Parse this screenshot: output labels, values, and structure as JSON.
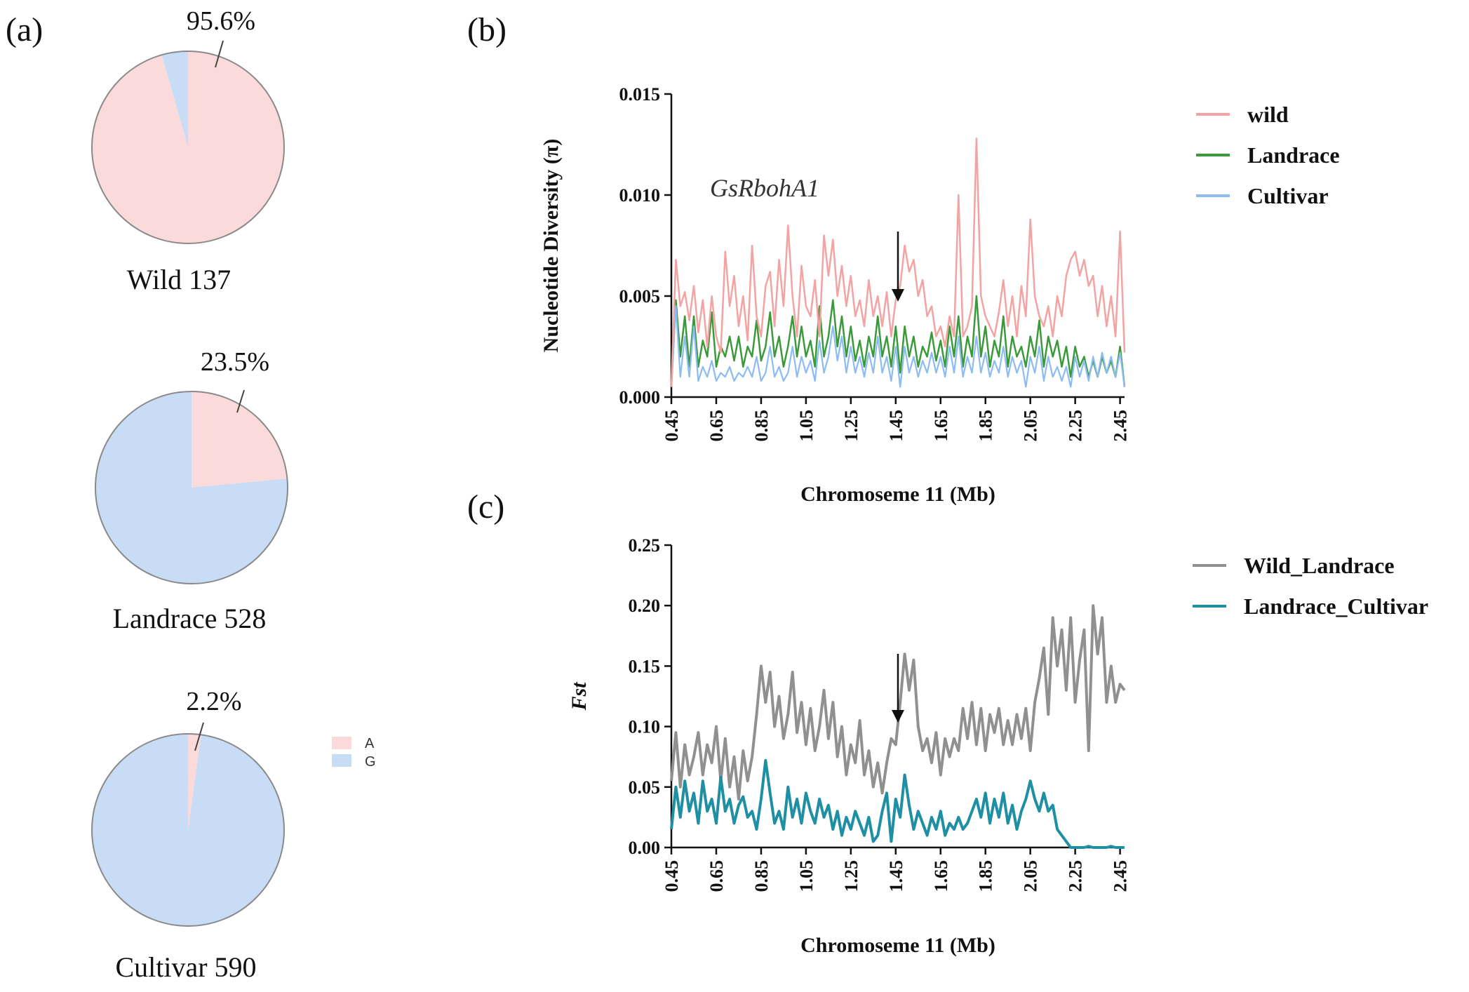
{
  "panels": {
    "a": "(a)",
    "b": "(b)",
    "c": "(c)"
  },
  "colors": {
    "A": "#fadada",
    "G": "#c8dcf5",
    "wild": "#f4a3a3",
    "landrace": "#3a9a3a",
    "cultivar": "#8cbcf2",
    "wild_landrace": "#909090",
    "landrace_cultivar": "#1f8fa3"
  },
  "chart_data": [
    {
      "type": "pie",
      "id": "pie-wild",
      "title": "Wild 137",
      "labels": [
        "A",
        "G"
      ],
      "values": [
        95.6,
        4.4
      ],
      "label_text": "95.6%",
      "legend": [
        "A",
        "G"
      ]
    },
    {
      "type": "pie",
      "id": "pie-landrace",
      "title": "Landrace 528",
      "labels": [
        "A",
        "G"
      ],
      "values": [
        23.5,
        76.5
      ],
      "label_text": "23.5%"
    },
    {
      "type": "pie",
      "id": "pie-cultivar",
      "title": "Cultivar 590",
      "labels": [
        "A",
        "G"
      ],
      "values": [
        2.2,
        97.8
      ],
      "label_text": "2.2%"
    },
    {
      "type": "line",
      "id": "diversity",
      "xlabel": "Chromoseme 11 (Mb)",
      "ylabel": "Nucleotide Diversity (π)",
      "xlim": [
        0.45,
        2.47
      ],
      "ylim": [
        0,
        0.015
      ],
      "xticks": [
        "0.45",
        "0.65",
        "0.85",
        "1.05",
        "1.25",
        "1.45",
        "1.65",
        "1.85",
        "2.05",
        "2.25",
        "2.45"
      ],
      "yticks": [
        "0.000",
        "0.005",
        "0.010",
        "0.015"
      ],
      "annotation": {
        "text": "GsRbohA1",
        "x": 1.45,
        "y": 0.0048
      },
      "x": [
        0.45,
        0.47,
        0.49,
        0.51,
        0.53,
        0.55,
        0.57,
        0.59,
        0.61,
        0.63,
        0.65,
        0.67,
        0.69,
        0.71,
        0.73,
        0.75,
        0.77,
        0.79,
        0.81,
        0.83,
        0.85,
        0.87,
        0.89,
        0.91,
        0.93,
        0.95,
        0.97,
        0.99,
        1.01,
        1.03,
        1.05,
        1.07,
        1.09,
        1.11,
        1.13,
        1.15,
        1.17,
        1.19,
        1.21,
        1.23,
        1.25,
        1.27,
        1.29,
        1.31,
        1.33,
        1.35,
        1.37,
        1.39,
        1.41,
        1.43,
        1.45,
        1.47,
        1.49,
        1.51,
        1.53,
        1.55,
        1.57,
        1.59,
        1.61,
        1.63,
        1.65,
        1.67,
        1.69,
        1.71,
        1.73,
        1.75,
        1.77,
        1.79,
        1.81,
        1.83,
        1.85,
        1.87,
        1.89,
        1.91,
        1.93,
        1.95,
        1.97,
        1.99,
        2.01,
        2.03,
        2.05,
        2.07,
        2.09,
        2.11,
        2.13,
        2.15,
        2.17,
        2.19,
        2.21,
        2.23,
        2.25,
        2.27,
        2.29,
        2.31,
        2.33,
        2.35,
        2.37,
        2.39,
        2.41,
        2.43,
        2.45,
        2.47
      ],
      "series": [
        {
          "name": "wild",
          "values": [
            0.0005,
            0.0068,
            0.0045,
            0.0052,
            0.0038,
            0.0055,
            0.0032,
            0.0048,
            0.0025,
            0.005,
            0.003,
            0.0022,
            0.0072,
            0.0045,
            0.006,
            0.0035,
            0.005,
            0.0028,
            0.0075,
            0.004,
            0.003,
            0.0055,
            0.0062,
            0.0035,
            0.0068,
            0.0045,
            0.0085,
            0.005,
            0.003,
            0.0065,
            0.0045,
            0.004,
            0.0058,
            0.003,
            0.008,
            0.006,
            0.0078,
            0.005,
            0.0065,
            0.0045,
            0.006,
            0.004,
            0.0048,
            0.0035,
            0.0058,
            0.004,
            0.005,
            0.0035,
            0.0052,
            0.003,
            0.0048,
            0.0055,
            0.0075,
            0.0062,
            0.0068,
            0.005,
            0.0058,
            0.004,
            0.0045,
            0.003,
            0.0035,
            0.0025,
            0.004,
            0.003,
            0.01,
            0.003,
            0.0035,
            0.0045,
            0.0128,
            0.005,
            0.004,
            0.0035,
            0.003,
            0.0042,
            0.0058,
            0.0035,
            0.005,
            0.003,
            0.0055,
            0.004,
            0.0088,
            0.005,
            0.004,
            0.0035,
            0.0045,
            0.003,
            0.005,
            0.004,
            0.006,
            0.0068,
            0.0072,
            0.006,
            0.0068,
            0.0055,
            0.006,
            0.004,
            0.0055,
            0.0035,
            0.005,
            0.003,
            0.0082,
            0.0022
          ]
        },
        {
          "name": "Landrace",
          "values": [
            0.0005,
            0.0048,
            0.002,
            0.004,
            0.0015,
            0.004,
            0.0015,
            0.0028,
            0.002,
            0.0042,
            0.0015,
            0.0025,
            0.002,
            0.003,
            0.0018,
            0.003,
            0.0015,
            0.0025,
            0.002,
            0.0038,
            0.0018,
            0.0025,
            0.0042,
            0.002,
            0.003,
            0.0015,
            0.0025,
            0.004,
            0.002,
            0.0035,
            0.002,
            0.0028,
            0.0015,
            0.0045,
            0.002,
            0.003,
            0.0048,
            0.0025,
            0.004,
            0.002,
            0.0035,
            0.0018,
            0.0028,
            0.0015,
            0.003,
            0.002,
            0.004,
            0.002,
            0.003,
            0.0015,
            0.0035,
            0.0012,
            0.0035,
            0.002,
            0.003,
            0.0015,
            0.0025,
            0.002,
            0.0032,
            0.0018,
            0.0028,
            0.0015,
            0.0035,
            0.002,
            0.004,
            0.0015,
            0.003,
            0.002,
            0.005,
            0.002,
            0.0035,
            0.0015,
            0.0028,
            0.002,
            0.004,
            0.0015,
            0.003,
            0.002,
            0.0025,
            0.0015,
            0.003,
            0.002,
            0.0038,
            0.0015,
            0.003,
            0.002,
            0.0028,
            0.0015,
            0.0025,
            0.001,
            0.0025,
            0.0015,
            0.002,
            0.001,
            0.0018,
            0.001,
            0.002,
            0.0012,
            0.0018,
            0.001,
            0.0025,
            0.0005
          ]
        },
        {
          "name": "Cultivar",
          "values": [
            0.0005,
            0.0045,
            0.001,
            0.003,
            0.001,
            0.0035,
            0.0008,
            0.0015,
            0.001,
            0.0018,
            0.0008,
            0.0012,
            0.001,
            0.0015,
            0.0008,
            0.0012,
            0.001,
            0.0015,
            0.001,
            0.002,
            0.0008,
            0.0012,
            0.0025,
            0.001,
            0.0015,
            0.0008,
            0.0012,
            0.0025,
            0.001,
            0.002,
            0.0012,
            0.0018,
            0.0008,
            0.0028,
            0.0012,
            0.002,
            0.0035,
            0.0018,
            0.003,
            0.0012,
            0.0025,
            0.0012,
            0.002,
            0.001,
            0.0022,
            0.0012,
            0.003,
            0.0012,
            0.002,
            0.0008,
            0.0025,
            0.0005,
            0.0025,
            0.0012,
            0.002,
            0.001,
            0.0018,
            0.0012,
            0.0022,
            0.0012,
            0.002,
            0.001,
            0.0025,
            0.0012,
            0.003,
            0.001,
            0.002,
            0.0012,
            0.003,
            0.0012,
            0.0022,
            0.001,
            0.0018,
            0.0012,
            0.0025,
            0.001,
            0.002,
            0.0012,
            0.0018,
            0.0005,
            0.002,
            0.0012,
            0.0025,
            0.0008,
            0.002,
            0.001,
            0.0015,
            0.0008,
            0.0015,
            0.0005,
            0.002,
            0.001,
            0.0018,
            0.0008,
            0.002,
            0.001,
            0.0022,
            0.0012,
            0.002,
            0.001,
            0.0022,
            0.0005
          ]
        }
      ]
    },
    {
      "type": "line",
      "id": "fst",
      "xlabel": "Chromoseme 11 (Mb)",
      "ylabel": "Fst",
      "xlim": [
        0.45,
        2.47
      ],
      "ylim": [
        0,
        0.25
      ],
      "xticks": [
        "0.45",
        "0.65",
        "0.85",
        "1.05",
        "1.25",
        "1.45",
        "1.65",
        "1.85",
        "2.05",
        "2.25",
        "2.45"
      ],
      "yticks": [
        "0.00",
        "0.05",
        "0.10",
        "0.15",
        "0.20",
        "0.25"
      ],
      "annotation": {
        "text": "",
        "x": 1.45,
        "y": 0.1
      },
      "x": [
        0.45,
        0.47,
        0.49,
        0.51,
        0.53,
        0.55,
        0.57,
        0.59,
        0.61,
        0.63,
        0.65,
        0.67,
        0.69,
        0.71,
        0.73,
        0.75,
        0.77,
        0.79,
        0.81,
        0.83,
        0.85,
        0.87,
        0.89,
        0.91,
        0.93,
        0.95,
        0.97,
        0.99,
        1.01,
        1.03,
        1.05,
        1.07,
        1.09,
        1.11,
        1.13,
        1.15,
        1.17,
        1.19,
        1.21,
        1.23,
        1.25,
        1.27,
        1.29,
        1.31,
        1.33,
        1.35,
        1.37,
        1.39,
        1.41,
        1.43,
        1.45,
        1.47,
        1.49,
        1.51,
        1.53,
        1.55,
        1.57,
        1.59,
        1.61,
        1.63,
        1.65,
        1.67,
        1.69,
        1.71,
        1.73,
        1.75,
        1.77,
        1.79,
        1.81,
        1.83,
        1.85,
        1.87,
        1.89,
        1.91,
        1.93,
        1.95,
        1.97,
        1.99,
        2.01,
        2.03,
        2.05,
        2.07,
        2.09,
        2.11,
        2.13,
        2.15,
        2.17,
        2.19,
        2.21,
        2.23,
        2.25,
        2.27,
        2.29,
        2.31,
        2.33,
        2.35,
        2.37,
        2.39,
        2.41,
        2.43,
        2.45,
        2.47
      ],
      "series": [
        {
          "name": "Wild_Landrace",
          "values": [
            0.055,
            0.095,
            0.05,
            0.085,
            0.06,
            0.075,
            0.095,
            0.06,
            0.085,
            0.07,
            0.1,
            0.055,
            0.09,
            0.05,
            0.075,
            0.04,
            0.08,
            0.055,
            0.075,
            0.11,
            0.15,
            0.12,
            0.145,
            0.1,
            0.125,
            0.09,
            0.11,
            0.145,
            0.095,
            0.12,
            0.085,
            0.115,
            0.08,
            0.1,
            0.13,
            0.09,
            0.12,
            0.075,
            0.1,
            0.06,
            0.085,
            0.07,
            0.105,
            0.06,
            0.08,
            0.05,
            0.07,
            0.045,
            0.07,
            0.09,
            0.085,
            0.12,
            0.16,
            0.13,
            0.155,
            0.1,
            0.08,
            0.09,
            0.07,
            0.095,
            0.06,
            0.09,
            0.075,
            0.09,
            0.08,
            0.115,
            0.09,
            0.12,
            0.085,
            0.115,
            0.08,
            0.11,
            0.095,
            0.115,
            0.085,
            0.105,
            0.085,
            0.11,
            0.09,
            0.115,
            0.08,
            0.12,
            0.14,
            0.165,
            0.11,
            0.19,
            0.15,
            0.18,
            0.13,
            0.19,
            0.12,
            0.155,
            0.18,
            0.08,
            0.2,
            0.16,
            0.19,
            0.12,
            0.15,
            0.12,
            0.135,
            0.13
          ]
        },
        {
          "name": "Landrace_Cultivar",
          "values": [
            0.015,
            0.05,
            0.025,
            0.055,
            0.03,
            0.045,
            0.02,
            0.055,
            0.03,
            0.04,
            0.02,
            0.058,
            0.03,
            0.04,
            0.02,
            0.035,
            0.042,
            0.025,
            0.03,
            0.015,
            0.04,
            0.072,
            0.045,
            0.02,
            0.03,
            0.015,
            0.05,
            0.025,
            0.04,
            0.02,
            0.045,
            0.03,
            0.02,
            0.04,
            0.025,
            0.035,
            0.015,
            0.03,
            0.01,
            0.025,
            0.015,
            0.03,
            0.02,
            0.01,
            0.025,
            0.005,
            0.01,
            0.03,
            0.045,
            0.005,
            0.04,
            0.025,
            0.06,
            0.035,
            0.015,
            0.03,
            0.02,
            0.01,
            0.025,
            0.015,
            0.03,
            0.01,
            0.02,
            0.015,
            0.025,
            0.015,
            0.02,
            0.03,
            0.04,
            0.025,
            0.045,
            0.02,
            0.04,
            0.025,
            0.045,
            0.02,
            0.035,
            0.015,
            0.03,
            0.04,
            0.055,
            0.04,
            0.03,
            0.045,
            0.03,
            0.035,
            0.015,
            0.01,
            0.005,
            0.0,
            0.0,
            0.0,
            0.0,
            0.001,
            0.0,
            0.0,
            0.0,
            0.0,
            0.001,
            0.0,
            0.0,
            0.0
          ]
        }
      ]
    }
  ]
}
